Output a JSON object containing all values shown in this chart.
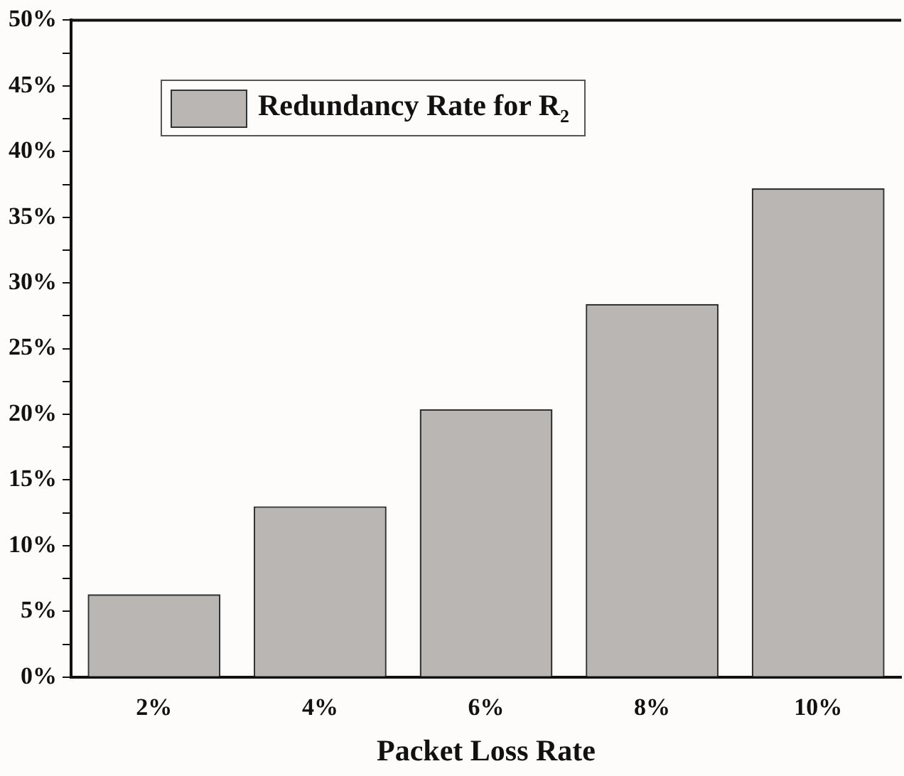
{
  "chart_data": {
    "type": "bar",
    "xlabel": "Packet Loss Rate",
    "categories": [
      "2%",
      "4%",
      "6%",
      "8%",
      "10%"
    ],
    "series": [
      {
        "name": "Redundancy Rate for R$_{2}$",
        "color": "#b9b6b3",
        "values": [
          6.3,
          13.0,
          20.4,
          28.4,
          37.2
        ]
      }
    ],
    "ylim": [
      0,
      50
    ],
    "yticks": [
      {
        "value": 0,
        "label": "0%"
      },
      {
        "value": 2.5,
        "label": null
      },
      {
        "value": 5,
        "label": "5%"
      },
      {
        "value": 7.5,
        "label": null
      },
      {
        "value": 10,
        "label": "10%"
      },
      {
        "value": 12.5,
        "label": null
      },
      {
        "value": 15,
        "label": "15%"
      },
      {
        "value": 17.5,
        "label": null
      },
      {
        "value": 20,
        "label": "20%"
      },
      {
        "value": 22.5,
        "label": null
      },
      {
        "value": 25,
        "label": "25%"
      },
      {
        "value": 27.5,
        "label": null
      },
      {
        "value": 30,
        "label": "30%"
      },
      {
        "value": 32.5,
        "label": null
      },
      {
        "value": 35,
        "label": "35%"
      },
      {
        "value": 37.5,
        "label": null
      },
      {
        "value": 40,
        "label": "40%"
      },
      {
        "value": 42.5,
        "label": null
      },
      {
        "value": 45,
        "label": "45%"
      },
      {
        "value": 47.5,
        "label": null
      },
      {
        "value": 50,
        "label": "50%"
      }
    ],
    "grid": false,
    "legend": "top"
  }
}
